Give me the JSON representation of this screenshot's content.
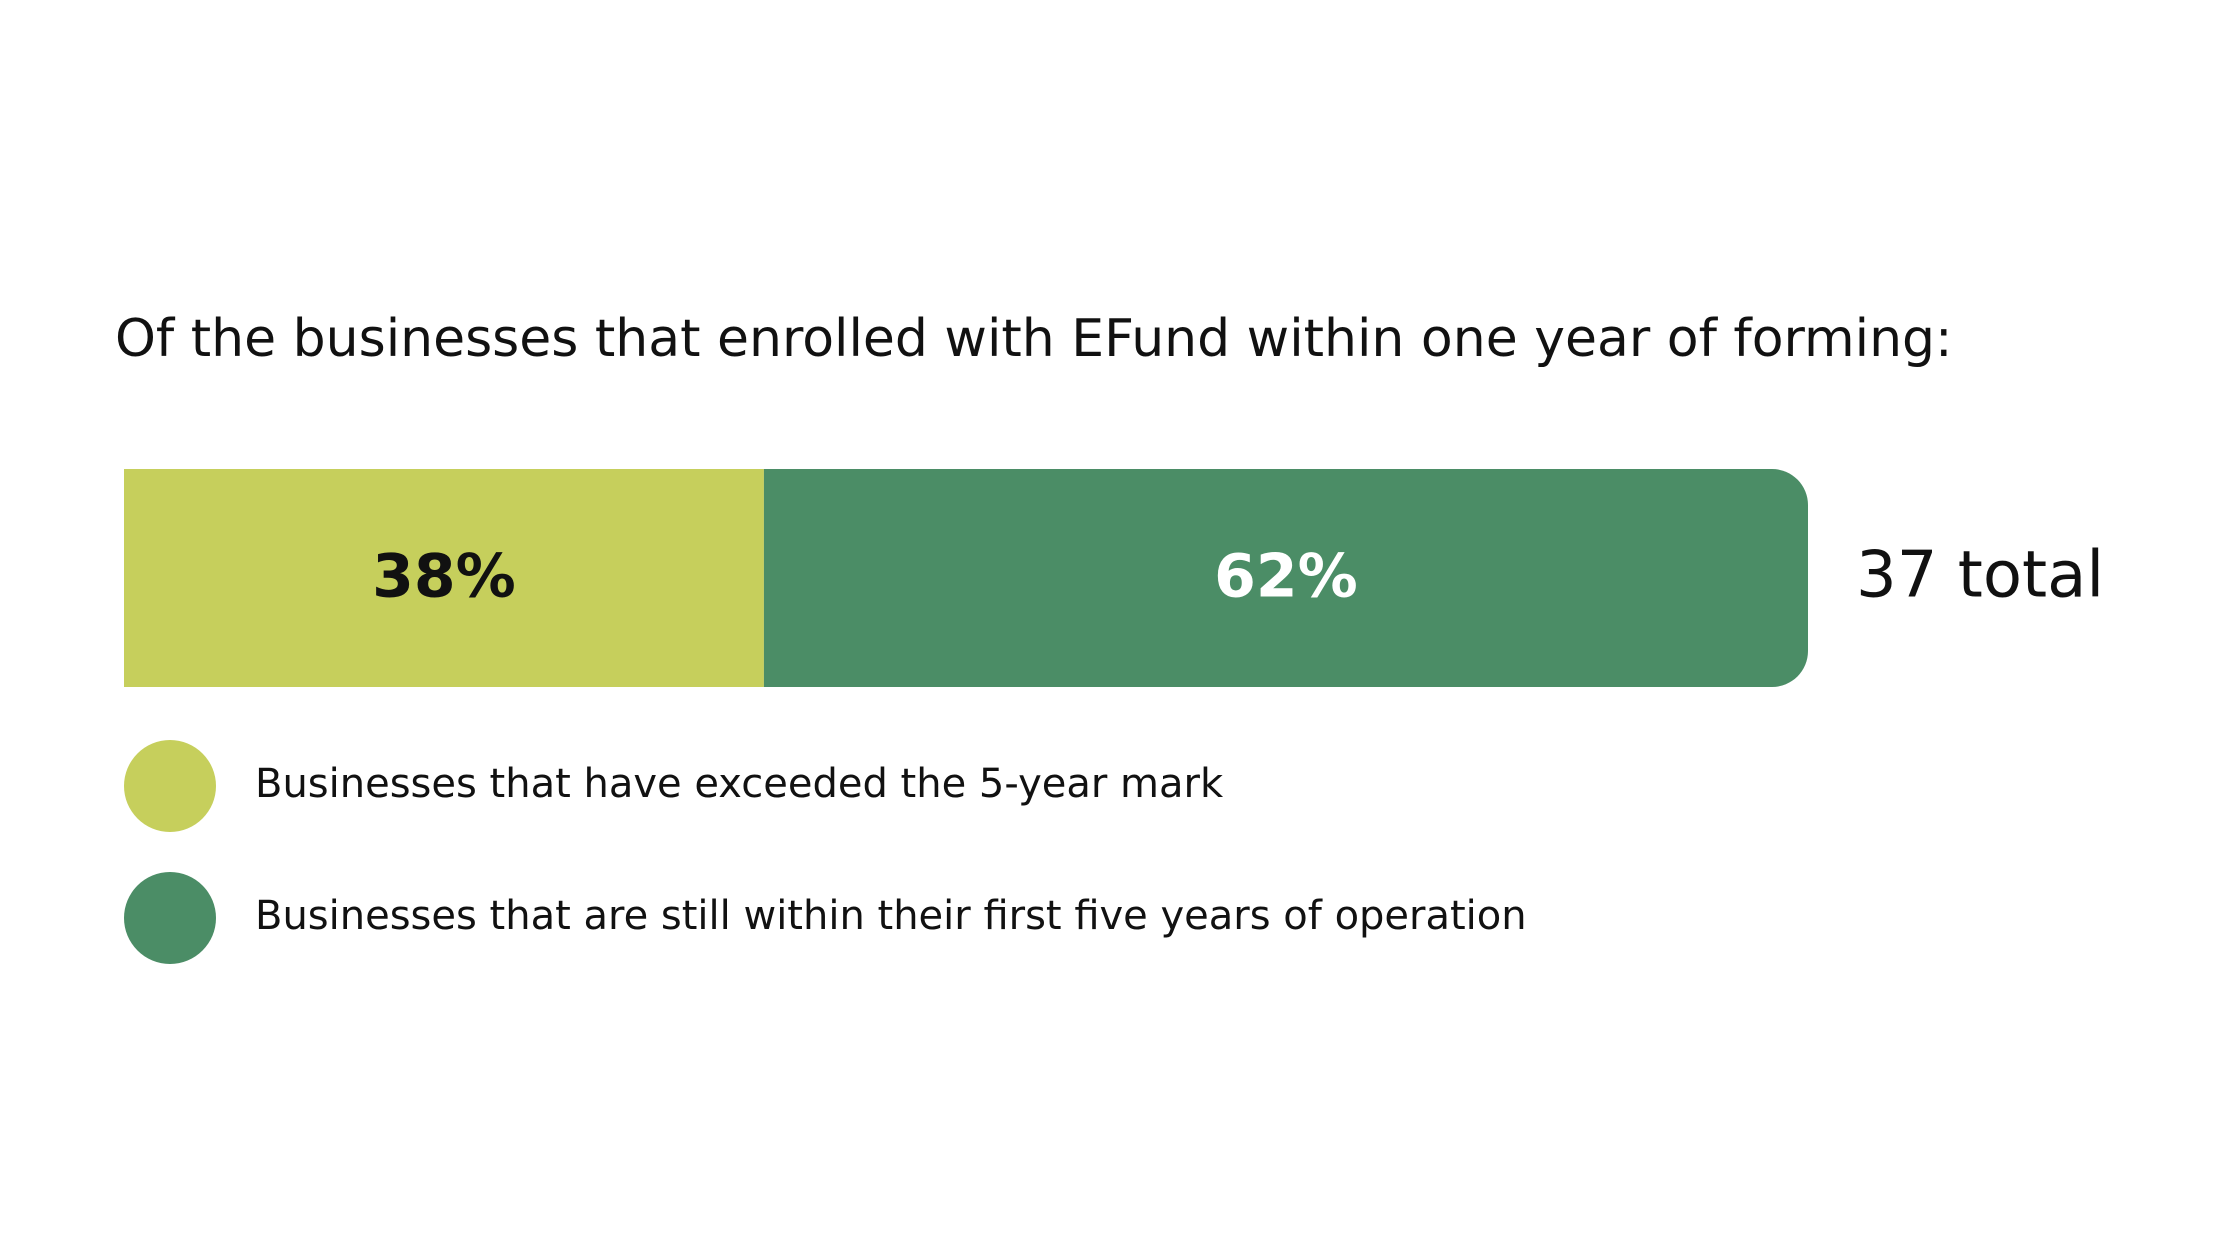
{
  "chart_data": {
    "type": "bar",
    "stacked": true,
    "title": "Of the businesses that enrolled with EFund within one year of forming:",
    "annotation": "37 total",
    "categories": [
      null
    ],
    "series": [
      {
        "name": "Businesses that have exceeded the 5-year mark",
        "color": "#c6cf5c",
        "values": [
          38
        ],
        "value_labels": [
          "38%"
        ]
      },
      {
        "name": "Businesses that are still within their first five years of operation",
        "color": "#4b8d66",
        "values": [
          62
        ],
        "value_labels": [
          "62%"
        ]
      }
    ]
  }
}
